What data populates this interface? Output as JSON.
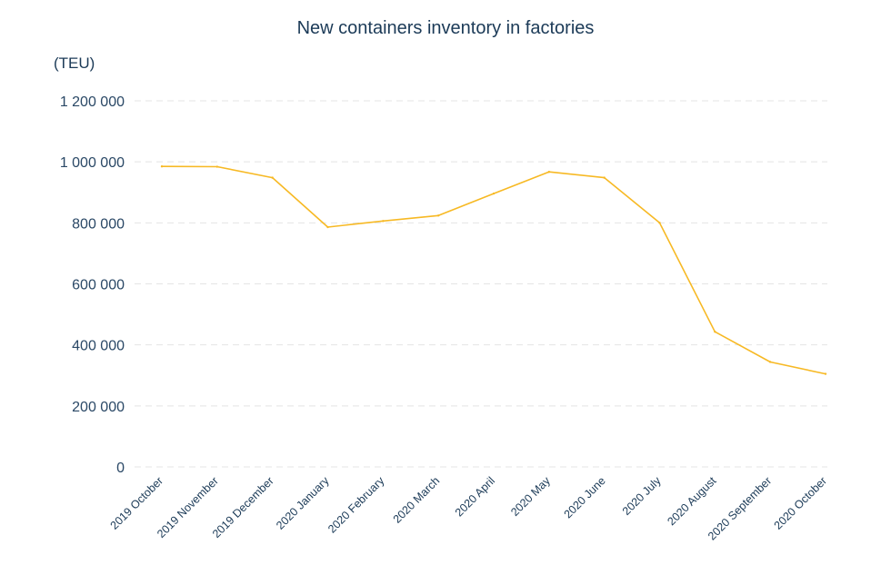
{
  "chart_data": {
    "type": "line",
    "title": "New containers inventory in factories",
    "unit_label": "(TEU)",
    "xlabel": "",
    "ylabel": "",
    "categories": [
      "2019 October",
      "2019 November",
      "2019 December",
      "2020 January",
      "2020 February",
      "2020 March",
      "2020 April",
      "2020 May",
      "2020 June",
      "2020 July",
      "2020 August",
      "2020 September",
      "2020 October"
    ],
    "series": [
      {
        "values": [
          985000,
          984000,
          948000,
          786000,
          806000,
          824000,
          896000,
          967000,
          948000,
          800000,
          443000,
          344000,
          305000
        ]
      }
    ],
    "y_ticks": [
      "0",
      "200 000",
      "400 000",
      "600 000",
      "800 000",
      "1 000 000",
      "1 200 000"
    ],
    "y_tick_values": [
      0,
      200000,
      400000,
      600000,
      800000,
      1000000,
      1200000
    ],
    "ylim": [
      0,
      1200000
    ],
    "grid": true,
    "grid_style": "dashed horizontal",
    "line_color": "#f7b924",
    "grid_color": "#e4e4e4",
    "text_color": "#1b3a57"
  }
}
